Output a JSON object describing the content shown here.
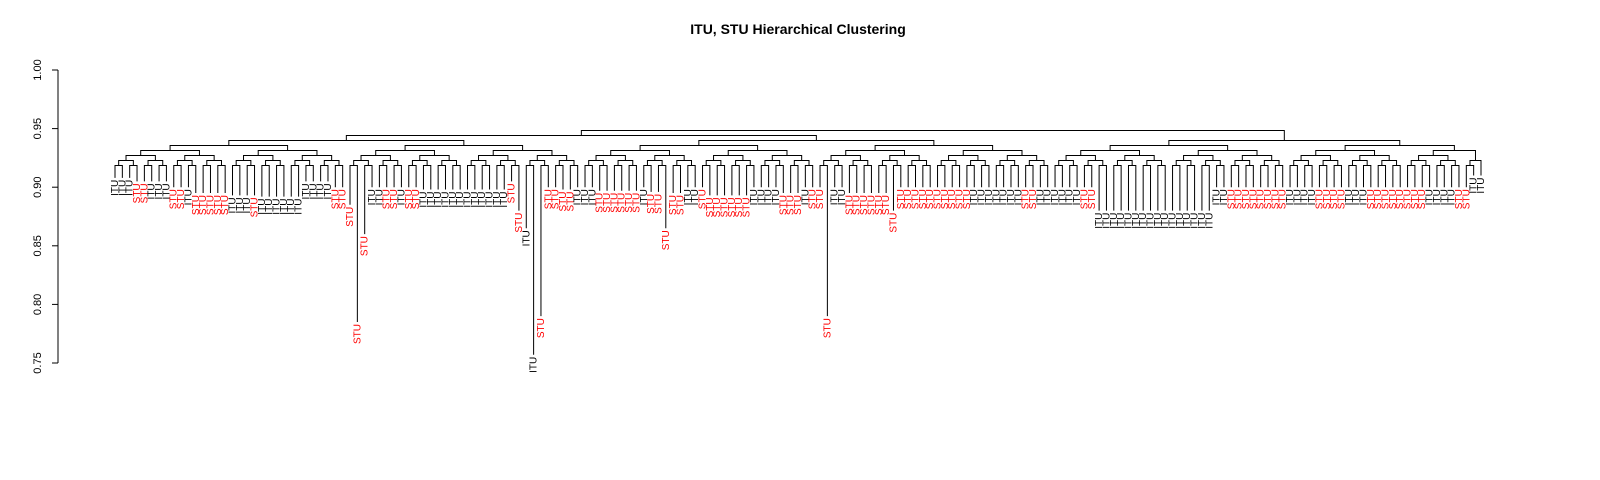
{
  "colors": {
    "itu": "#000000",
    "stu": "#ff0000",
    "link": "#000000"
  },
  "chart_data": {
    "type": "dendrogram",
    "title": "ITU, STU Hierarchical Clustering",
    "xlabel": "",
    "ylabel": "",
    "ylim": [
      0.75,
      1.0
    ],
    "yticks": [
      0.75,
      0.8,
      0.85,
      0.9,
      0.95,
      1.0
    ],
    "ytick_labels": [
      "0.75",
      "0.80",
      "0.85",
      "0.90",
      "0.95",
      "1.00"
    ],
    "grid": false,
    "leaf_label_values": [
      "ITU",
      "STU"
    ],
    "leaf_groups": [
      {
        "label": "ITU",
        "count": 3,
        "height": 0.908
      },
      {
        "label": "STU",
        "count": 2,
        "height": 0.905
      },
      {
        "label": "ITU",
        "count": 3,
        "height": 0.905
      },
      {
        "label": "STU",
        "count": 2,
        "height": 0.9
      },
      {
        "label": "ITU",
        "count": 1,
        "height": 0.9
      },
      {
        "label": "STU",
        "count": 5,
        "height": 0.895
      },
      {
        "label": "ITU",
        "count": 3,
        "height": 0.893
      },
      {
        "label": "STU",
        "count": 1,
        "height": 0.893
      },
      {
        "label": "ITU",
        "count": 6,
        "height": 0.892
      },
      {
        "label": "ITU",
        "count": 4,
        "height": 0.905
      },
      {
        "label": "STU",
        "count": 2,
        "height": 0.9
      },
      {
        "label": "STU",
        "count": 1,
        "height": 0.885
      },
      {
        "label": "STU",
        "count": 1,
        "height": 0.785
      },
      {
        "label": "STU",
        "count": 1,
        "height": 0.86
      },
      {
        "label": "ITU",
        "count": 2,
        "height": 0.9
      },
      {
        "label": "STU",
        "count": 2,
        "height": 0.9
      },
      {
        "label": "ITU",
        "count": 1,
        "height": 0.9
      },
      {
        "label": "STU",
        "count": 2,
        "height": 0.9
      },
      {
        "label": "ITU",
        "count": 12,
        "height": 0.898
      },
      {
        "label": "STU",
        "count": 1,
        "height": 0.905
      },
      {
        "label": "STU",
        "count": 1,
        "height": 0.88
      },
      {
        "label": "ITU",
        "count": 1,
        "height": 0.865
      },
      {
        "label": "ITU",
        "count": 1,
        "height": 0.757
      },
      {
        "label": "STU",
        "count": 1,
        "height": 0.79
      },
      {
        "label": "STU",
        "count": 2,
        "height": 0.9
      },
      {
        "label": "STU",
        "count": 2,
        "height": 0.898
      },
      {
        "label": "ITU",
        "count": 3,
        "height": 0.9
      },
      {
        "label": "STU",
        "count": 6,
        "height": 0.897
      },
      {
        "label": "ITU",
        "count": 1,
        "height": 0.9
      },
      {
        "label": "STU",
        "count": 2,
        "height": 0.896
      },
      {
        "label": "STU",
        "count": 1,
        "height": 0.865
      },
      {
        "label": "STU",
        "count": 2,
        "height": 0.895
      },
      {
        "label": "ITU",
        "count": 2,
        "height": 0.9
      },
      {
        "label": "STU",
        "count": 1,
        "height": 0.9
      },
      {
        "label": "STU",
        "count": 6,
        "height": 0.893
      },
      {
        "label": "ITU",
        "count": 4,
        "height": 0.9
      },
      {
        "label": "STU",
        "count": 3,
        "height": 0.895
      },
      {
        "label": "ITU",
        "count": 1,
        "height": 0.9
      },
      {
        "label": "STU",
        "count": 2,
        "height": 0.9
      },
      {
        "label": "STU",
        "count": 1,
        "height": 0.79
      },
      {
        "label": "ITU",
        "count": 2,
        "height": 0.9
      },
      {
        "label": "STU",
        "count": 6,
        "height": 0.895
      },
      {
        "label": "STU",
        "count": 1,
        "height": 0.88
      },
      {
        "label": "STU",
        "count": 10,
        "height": 0.9
      },
      {
        "label": "ITU",
        "count": 7,
        "height": 0.9
      },
      {
        "label": "STU",
        "count": 2,
        "height": 0.9
      },
      {
        "label": "ITU",
        "count": 6,
        "height": 0.9
      },
      {
        "label": "STU",
        "count": 2,
        "height": 0.9
      },
      {
        "label": "ITU",
        "count": 16,
        "height": 0.88
      },
      {
        "label": "ITU",
        "count": 2,
        "height": 0.9
      },
      {
        "label": "STU",
        "count": 8,
        "height": 0.9
      },
      {
        "label": "ITU",
        "count": 4,
        "height": 0.9
      },
      {
        "label": "STU",
        "count": 4,
        "height": 0.9
      },
      {
        "label": "ITU",
        "count": 3,
        "height": 0.9
      },
      {
        "label": "STU",
        "count": 8,
        "height": 0.9
      },
      {
        "label": "ITU",
        "count": 4,
        "height": 0.9
      },
      {
        "label": "STU",
        "count": 2,
        "height": 0.9
      },
      {
        "label": "ITU",
        "count": 2,
        "height": 0.91
      }
    ]
  }
}
